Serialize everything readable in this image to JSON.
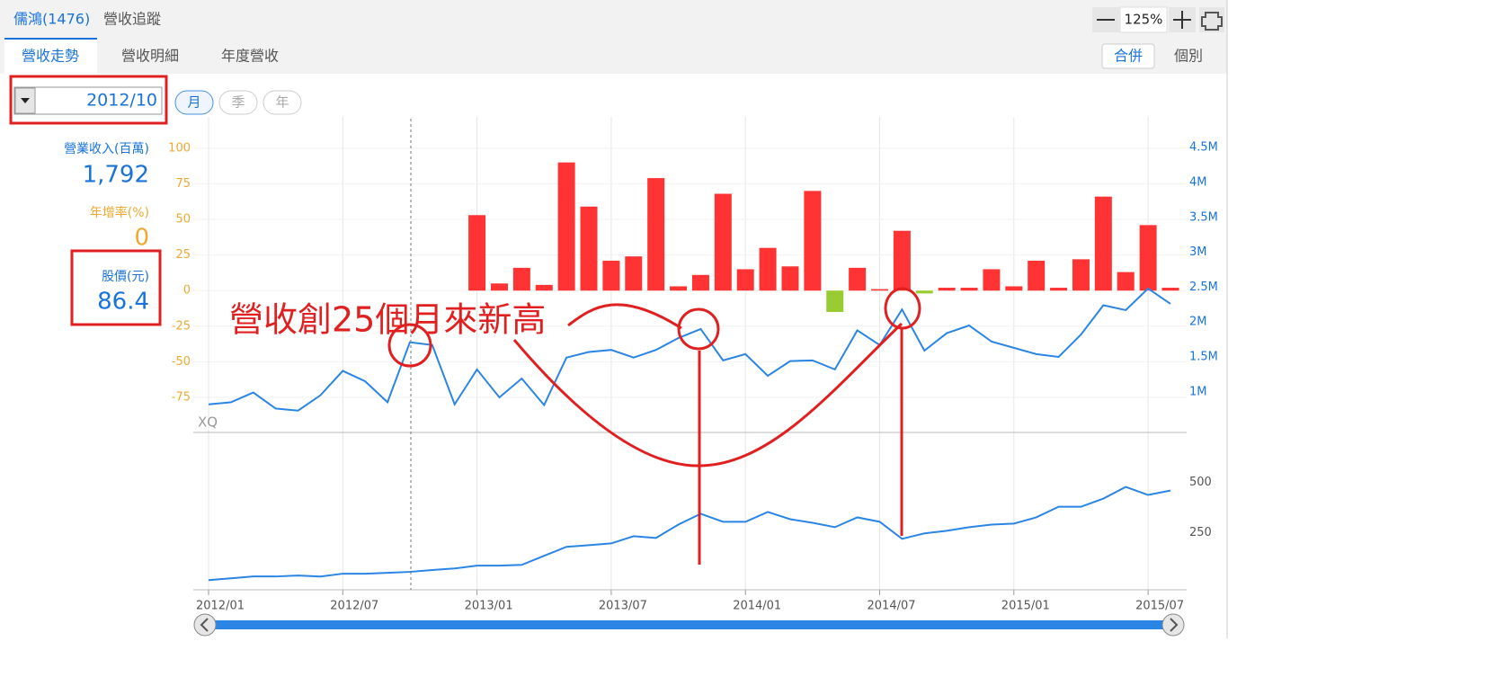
{
  "header": {
    "company": "儒鴻(1476)",
    "title": "營收追蹤",
    "zoom": "125%"
  },
  "tabs": [
    "營收走勢",
    "營收明細",
    "年度營收"
  ],
  "scope": [
    "合併",
    "個別"
  ],
  "date": "2012/10",
  "periods": [
    "月",
    "季",
    "年"
  ],
  "info": [
    {
      "label": "營業收入(百萬)",
      "value": "1,792"
    },
    {
      "label": "年增率(%)",
      "value": "0"
    },
    {
      "label": "股價(元)",
      "value": "86.4"
    }
  ],
  "annotation": "營收創25個月來新高",
  "watermark": "XQ",
  "chart_data": [
    {
      "type": "bar",
      "ylim": [
        -99,
        122
      ],
      "yticks": [
        -75,
        -50,
        -25,
        0,
        25,
        50,
        75,
        100
      ],
      "y2lim": [
        430000,
        4940000
      ],
      "y2ticks": [
        {
          "value": 1000000,
          "label": "1M"
        },
        {
          "value": 1500000,
          "label": "1.5M"
        },
        {
          "value": 2000000,
          "label": "2M"
        },
        {
          "value": 2500000,
          "label": "2.5M"
        },
        {
          "value": 3000000,
          "label": "3M"
        },
        {
          "value": 3500000,
          "label": "3.5M"
        },
        {
          "value": 4000000,
          "label": "4M"
        },
        {
          "value": 4500000,
          "label": "4.5M"
        }
      ],
      "grid": true,
      "series": [
        {
          "type": "bar",
          "color": "#ff3333",
          "negative_color": "#99cc33",
          "values": [
            null,
            null,
            null,
            null,
            null,
            null,
            null,
            null,
            null,
            null,
            null,
            null,
            53,
            5,
            16,
            4,
            90,
            59,
            21,
            24,
            79,
            3,
            11,
            68,
            15,
            30,
            17,
            70,
            -15,
            16,
            1,
            42,
            -2,
            2,
            2,
            15,
            3,
            21,
            2,
            22,
            66,
            13,
            46,
            2
          ]
        },
        {
          "type": "line",
          "axis": "y2",
          "color": "#2b85e4",
          "values": [
            820000,
            850000,
            990000,
            760000,
            730000,
            950000,
            1300000,
            1150000,
            850000,
            1710000,
            1670000,
            820000,
            1320000,
            920000,
            1190000,
            810000,
            1490000,
            1570000,
            1600000,
            1490000,
            1600000,
            1770000,
            1900000,
            1450000,
            1540000,
            1230000,
            1440000,
            1450000,
            1320000,
            1880000,
            1670000,
            2180000,
            1590000,
            1840000,
            1950000,
            1720000,
            1630000,
            1540000,
            1500000,
            1820000,
            2240000,
            2170000,
            2480000,
            2260000
          ]
        }
      ]
    },
    {
      "type": "line",
      "categories": [
        "2012/01",
        null,
        null,
        null,
        null,
        null,
        "2012/07",
        null,
        null,
        null,
        null,
        null,
        "2013/01",
        null,
        null,
        null,
        null,
        null,
        "2013/07",
        null,
        null,
        null,
        null,
        null,
        "2014/01",
        null,
        null,
        null,
        null,
        null,
        "2014/07",
        null,
        null,
        null,
        null,
        null,
        "2015/01",
        null,
        null,
        null,
        null,
        null,
        "2015/07",
        null
      ],
      "ylim": [
        -31,
        750
      ],
      "yticks": [
        250,
        500
      ],
      "series": [
        {
          "color": "#2b85e4",
          "values": [
            13,
            22,
            31,
            31,
            36,
            31,
            45,
            45,
            49,
            54,
            63,
            71,
            85,
            85,
            89,
            134,
            179,
            187,
            196,
            232,
            223,
            290,
            344,
            304,
            304,
            353,
            317,
            299,
            277,
            326,
            304,
            219,
            246,
            259,
            277,
            290,
            295,
            326,
            379,
            379,
            420,
            478,
            438,
            460
          ]
        }
      ]
    }
  ]
}
